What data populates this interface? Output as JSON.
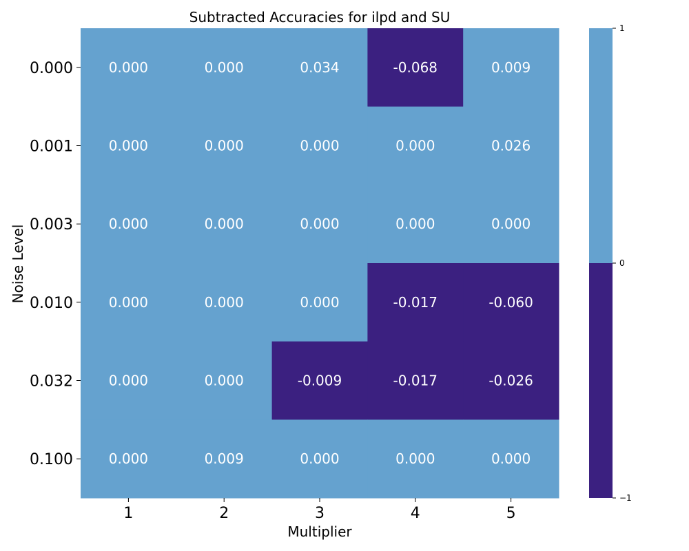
{
  "chart_data": {
    "type": "heatmap",
    "title": "Subtracted Accuracies for ilpd and SU",
    "xlabel": "Multiplier",
    "ylabel": "Noise Level",
    "x_categories": [
      "1",
      "2",
      "3",
      "4",
      "5"
    ],
    "y_categories": [
      "0.000",
      "0.001",
      "0.003",
      "0.010",
      "0.032",
      "0.100"
    ],
    "values": [
      [
        0.0,
        0.0,
        0.034,
        -0.068,
        0.009
      ],
      [
        0.0,
        0.0,
        0.0,
        0.0,
        0.026
      ],
      [
        0.0,
        0.0,
        0.0,
        0.0,
        0.0
      ],
      [
        0.0,
        0.0,
        0.0,
        -0.017,
        -0.06
      ],
      [
        0.0,
        0.0,
        -0.009,
        -0.017,
        -0.026
      ],
      [
        0.0,
        0.009,
        0.0,
        0.0,
        0.0
      ]
    ],
    "cell_labels": [
      [
        "0.000",
        "0.000",
        "0.034",
        "-0.068",
        "0.009"
      ],
      [
        "0.000",
        "0.000",
        "0.000",
        "0.000",
        "0.026"
      ],
      [
        "0.000",
        "0.000",
        "0.000",
        "0.000",
        "0.000"
      ],
      [
        "0.000",
        "0.000",
        "0.000",
        "-0.017",
        "-0.060"
      ],
      [
        "0.000",
        "0.000",
        "-0.009",
        "-0.017",
        "-0.026"
      ],
      [
        "0.000",
        "0.009",
        "0.000",
        "0.000",
        "0.000"
      ]
    ],
    "colors": {
      "non_negative": "#65a2cf",
      "negative": "#3b2080"
    },
    "colorbar": {
      "range": [
        -1,
        1
      ],
      "boundary": 0,
      "ticks": [
        "1",
        "0",
        "−1"
      ]
    }
  }
}
